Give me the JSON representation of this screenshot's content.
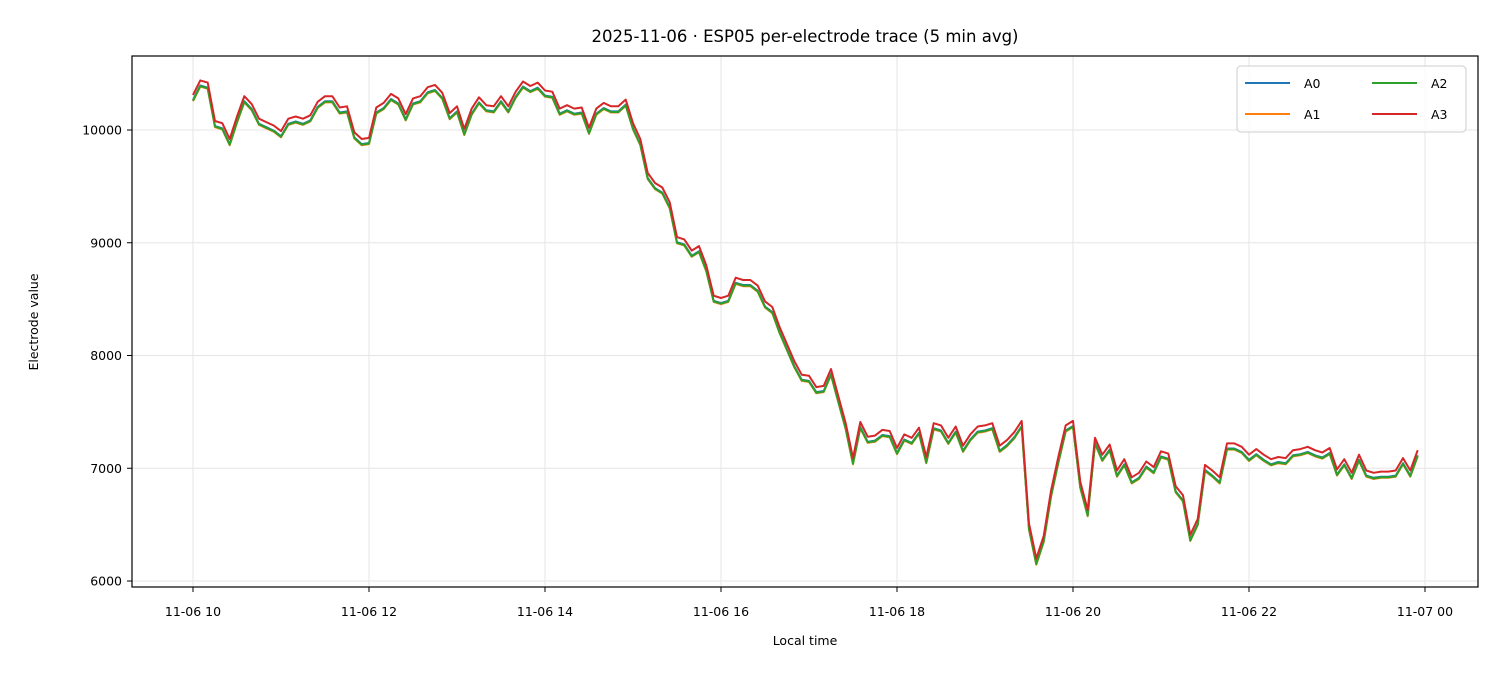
{
  "chart_data": {
    "type": "line",
    "title": "2025-11-06 · ESP05 per-electrode trace (5 min avg)",
    "xlabel": "Local time",
    "ylabel": "Electrode value",
    "ylim": [
      5940,
      10660
    ],
    "yticks": [
      6000,
      7000,
      8000,
      9000,
      10000
    ],
    "xticks": [
      "11-06 10",
      "11-06 12",
      "11-06 14",
      "11-06 16",
      "11-06 18",
      "11-06 20",
      "11-06 22",
      "11-07 00"
    ],
    "x_start": "2025-11-06 10:00",
    "x_step_minutes": 5,
    "grid": true,
    "legend_position": "upper right",
    "legend_columns": 2,
    "series_colors": {
      "A0": "#1f77b4",
      "A1": "#ff7f0e",
      "A2": "#2ca02c",
      "A3": "#d62728"
    },
    "series_offsets_from_A3": {
      "A0": -45,
      "A1": -55,
      "A2": -50,
      "A3": 0
    },
    "a3_values": [
      10310,
      10440,
      10420,
      10080,
      10060,
      9920,
      10120,
      10300,
      10230,
      10100,
      10070,
      10040,
      9990,
      10100,
      10120,
      10100,
      10130,
      10250,
      10300,
      10300,
      10200,
      10210,
      9980,
      9920,
      9930,
      10200,
      10240,
      10320,
      10280,
      10140,
      10280,
      10300,
      10380,
      10400,
      10330,
      10150,
      10210,
      10010,
      10190,
      10290,
      10220,
      10210,
      10300,
      10210,
      10340,
      10430,
      10390,
      10420,
      10350,
      10340,
      10190,
      10220,
      10190,
      10200,
      10020,
      10190,
      10240,
      10210,
      10210,
      10270,
      10060,
      9920,
      9620,
      9530,
      9490,
      9360,
      9050,
      9030,
      8930,
      8970,
      8800,
      8530,
      8510,
      8530,
      8690,
      8670,
      8670,
      8620,
      8480,
      8430,
      8250,
      8100,
      7950,
      7830,
      7820,
      7720,
      7730,
      7880,
      7640,
      7400,
      7090,
      7410,
      7280,
      7290,
      7340,
      7330,
      7180,
      7300,
      7270,
      7360,
      7100,
      7400,
      7380,
      7270,
      7370,
      7200,
      7300,
      7370,
      7380,
      7400,
      7200,
      7250,
      7320,
      7420,
      6510,
      6200,
      6400,
      6800,
      7100,
      7380,
      7420,
      6880,
      6630,
      7270,
      7120,
      7210,
      6980,
      7080,
      6920,
      6960,
      7060,
      7010,
      7150,
      7130,
      6840,
      6760,
      6410,
      6550,
      7030,
      6980,
      6920,
      7220,
      7220,
      7190,
      7120,
      7170,
      7120,
      7080,
      7100,
      7090,
      7160,
      7170,
      7190,
      7160,
      7140,
      7180,
      6990,
      7080,
      6960,
      7120,
      6980,
      6960,
      6970,
      6970,
      6980,
      7090,
      6980,
      7160
    ]
  },
  "legend": {
    "items": [
      {
        "label": "A0",
        "color": "#1f77b4"
      },
      {
        "label": "A1",
        "color": "#ff7f0e"
      },
      {
        "label": "A2",
        "color": "#2ca02c"
      },
      {
        "label": "A3",
        "color": "#d62728"
      }
    ]
  }
}
